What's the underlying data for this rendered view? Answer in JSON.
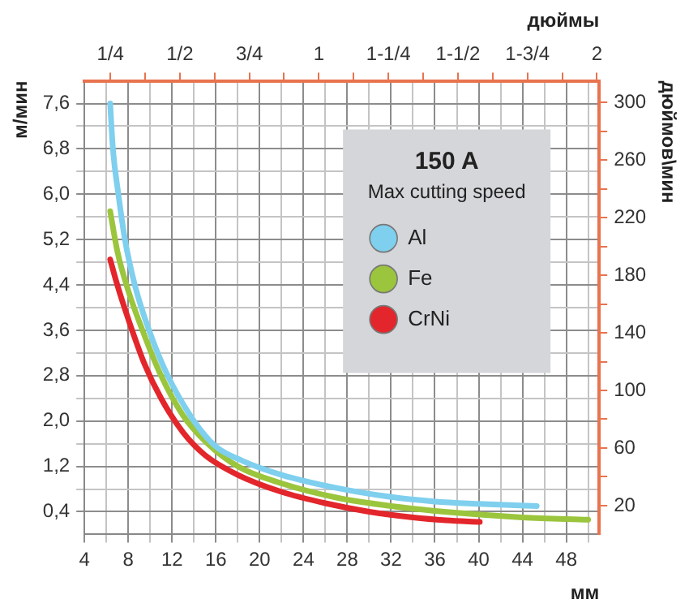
{
  "chart_data": {
    "type": "line",
    "subtitle": "Max cutting speed",
    "legend_title": "150 A",
    "xlabel": "мм",
    "x2label": "дюймы",
    "ylabel": "м/мин",
    "y2label": "дюймов\\мин",
    "xlim": [
      4,
      51
    ],
    "xticks": [
      4,
      {
        "value": 6,
        "label": null
      },
      8,
      {
        "value": 10,
        "label": null
      },
      12,
      {
        "value": 14,
        "label": null
      },
      16,
      {
        "value": 18,
        "label": null
      },
      20,
      {
        "value": 22,
        "label": null
      },
      24,
      {
        "value": 26,
        "label": null
      },
      28,
      {
        "value": 30,
        "label": null
      },
      32,
      {
        "value": 34,
        "label": null
      },
      36,
      {
        "value": 38,
        "label": null
      },
      40,
      {
        "value": 42,
        "label": null
      },
      44,
      {
        "value": 46,
        "label": null
      },
      48,
      {
        "value": 50,
        "label": null
      }
    ],
    "x2lim": [
      0.157,
      2.008
    ],
    "x2ticks": [
      {
        "value": 0.25,
        "label": "1/4"
      },
      {
        "value": 0.375,
        "label": null
      },
      {
        "value": 0.5,
        "label": "1/2"
      },
      {
        "value": 0.625,
        "label": null
      },
      {
        "value": 0.75,
        "label": "3/4"
      },
      {
        "value": 0.875,
        "label": null
      },
      1,
      {
        "value": 1.125,
        "label": null
      },
      {
        "value": 1.25,
        "label": "1-1/4"
      },
      {
        "value": 1.375,
        "label": null
      },
      {
        "value": 1.5,
        "label": "1-1/2"
      },
      {
        "value": 1.625,
        "label": null
      },
      {
        "value": 1.75,
        "label": "1-3/4"
      },
      {
        "value": 1.875,
        "label": null
      },
      2
    ],
    "ylim": [
      0,
      8
    ],
    "yticks": [
      {
        "value": 0.4,
        "label": "0,4"
      },
      {
        "value": 0.8,
        "label": null
      },
      {
        "value": 1.2,
        "label": "1,2"
      },
      {
        "value": 1.6,
        "label": null
      },
      {
        "value": 2.0,
        "label": "2,0"
      },
      {
        "value": 2.4,
        "label": null
      },
      {
        "value": 2.8,
        "label": "2,8"
      },
      {
        "value": 3.2,
        "label": null
      },
      {
        "value": 3.6,
        "label": "3,6"
      },
      {
        "value": 4.0,
        "label": null
      },
      {
        "value": 4.4,
        "label": "4,4"
      },
      {
        "value": 4.8,
        "label": null
      },
      {
        "value": 5.2,
        "label": "5,2"
      },
      {
        "value": 5.6,
        "label": null
      },
      {
        "value": 6.0,
        "label": "6,0"
      },
      {
        "value": 6.4,
        "label": null
      },
      {
        "value": 6.8,
        "label": "6,8"
      },
      {
        "value": 7.2,
        "label": null
      },
      {
        "value": 7.6,
        "label": "7,6"
      }
    ],
    "y2lim": [
      0,
      315
    ],
    "y2ticks": [
      20,
      {
        "value": 40,
        "label": null
      },
      60,
      {
        "value": 80,
        "label": null
      },
      100,
      {
        "value": 120,
        "label": null
      },
      140,
      {
        "value": 160,
        "label": null
      },
      180,
      {
        "value": 200,
        "label": null
      },
      220,
      {
        "value": 240,
        "label": null
      },
      260,
      {
        "value": 280,
        "label": null
      },
      300
    ],
    "grid": true,
    "legend": "top right",
    "series": [
      {
        "name": "Al",
        "color": "#7fcfee",
        "x": [
          6.35,
          6.6,
          7.1,
          7.7,
          8.6,
          9.9,
          11.6,
          14,
          16,
          18.4,
          22,
          27,
          32,
          36,
          40,
          45.3
        ],
        "values": [
          7.6,
          6.8,
          6.0,
          5.2,
          4.4,
          3.6,
          2.8,
          2.0,
          1.55,
          1.3,
          1.05,
          0.82,
          0.66,
          0.58,
          0.54,
          0.5
        ]
      },
      {
        "name": "Fe",
        "color": "#9bc53d",
        "x": [
          6.35,
          7,
          8,
          9.5,
          11,
          13,
          15,
          18,
          22,
          27,
          32,
          38,
          44,
          50
        ],
        "values": [
          5.7,
          5.0,
          4.3,
          3.5,
          2.8,
          2.1,
          1.65,
          1.2,
          0.9,
          0.65,
          0.5,
          0.38,
          0.3,
          0.26
        ]
      },
      {
        "name": "CrNi",
        "color": "#e3262b",
        "x": [
          6.35,
          7,
          8,
          9.5,
          11,
          13,
          15,
          18,
          22,
          26,
          30,
          34,
          37,
          40.1
        ],
        "values": [
          4.85,
          4.4,
          3.8,
          3.0,
          2.4,
          1.8,
          1.4,
          1.05,
          0.75,
          0.55,
          0.4,
          0.3,
          0.25,
          0.22
        ]
      }
    ]
  }
}
